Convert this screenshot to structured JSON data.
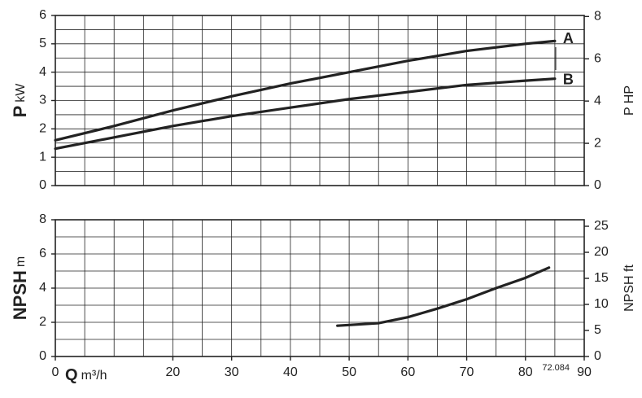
{
  "chart_data": [
    {
      "type": "line",
      "y_label": {
        "symbol": "P",
        "unit": "kW"
      },
      "y2_label": "P HP",
      "xlim": [
        0,
        90
      ],
      "xgrid": [
        0,
        5,
        10,
        15,
        20,
        25,
        30,
        35,
        40,
        45,
        50,
        55,
        60,
        65,
        70,
        75,
        80,
        85,
        90
      ],
      "ylim": [
        0,
        6
      ],
      "yticks": [
        0,
        1,
        2,
        3,
        4,
        5,
        6
      ],
      "ygrid": [
        0,
        0.5,
        1,
        1.5,
        2,
        2.5,
        3,
        3.5,
        4,
        4.5,
        5,
        5.5,
        6
      ],
      "y2lim": [
        0,
        8.05
      ],
      "y2ticks": [
        0,
        2,
        4,
        6,
        8
      ],
      "x": [
        0,
        10,
        20,
        30,
        40,
        50,
        60,
        70,
        80,
        85
      ],
      "series": [
        {
          "name": "A",
          "color": "#222222",
          "values": [
            1.6,
            2.1,
            2.65,
            3.15,
            3.6,
            4.0,
            4.4,
            4.75,
            5.0,
            5.1
          ]
        },
        {
          "name": "B",
          "color": "#222222",
          "values": [
            1.3,
            1.7,
            2.1,
            2.45,
            2.75,
            3.05,
            3.3,
            3.55,
            3.7,
            3.77
          ]
        }
      ]
    },
    {
      "type": "line",
      "y_label": {
        "symbol": "NPSH",
        "unit": "m"
      },
      "y2_label": "NPSH ft",
      "x_label": {
        "symbol": "Q",
        "unit": "m³/h"
      },
      "code": "72.084",
      "xlim": [
        0,
        90
      ],
      "xticks": [
        0,
        20,
        30,
        40,
        50,
        60,
        70,
        80,
        90
      ],
      "xgrid": [
        0,
        5,
        10,
        15,
        20,
        25,
        30,
        35,
        40,
        45,
        50,
        55,
        60,
        65,
        70,
        75,
        80,
        85,
        90
      ],
      "ylim": [
        0,
        8
      ],
      "yticks": [
        0,
        2,
        4,
        6,
        8
      ],
      "ygrid": [
        0,
        1,
        2,
        3,
        4,
        5,
        6,
        7,
        8
      ],
      "y2lim": [
        0,
        26.25
      ],
      "y2ticks": [
        0,
        5,
        10,
        15,
        20,
        25
      ],
      "x": [
        48,
        55,
        60,
        65,
        70,
        75,
        80,
        84
      ],
      "series": [
        {
          "color": "#222222",
          "values": [
            1.8,
            1.95,
            2.3,
            2.8,
            3.35,
            4.0,
            4.6,
            5.2
          ]
        }
      ]
    }
  ]
}
